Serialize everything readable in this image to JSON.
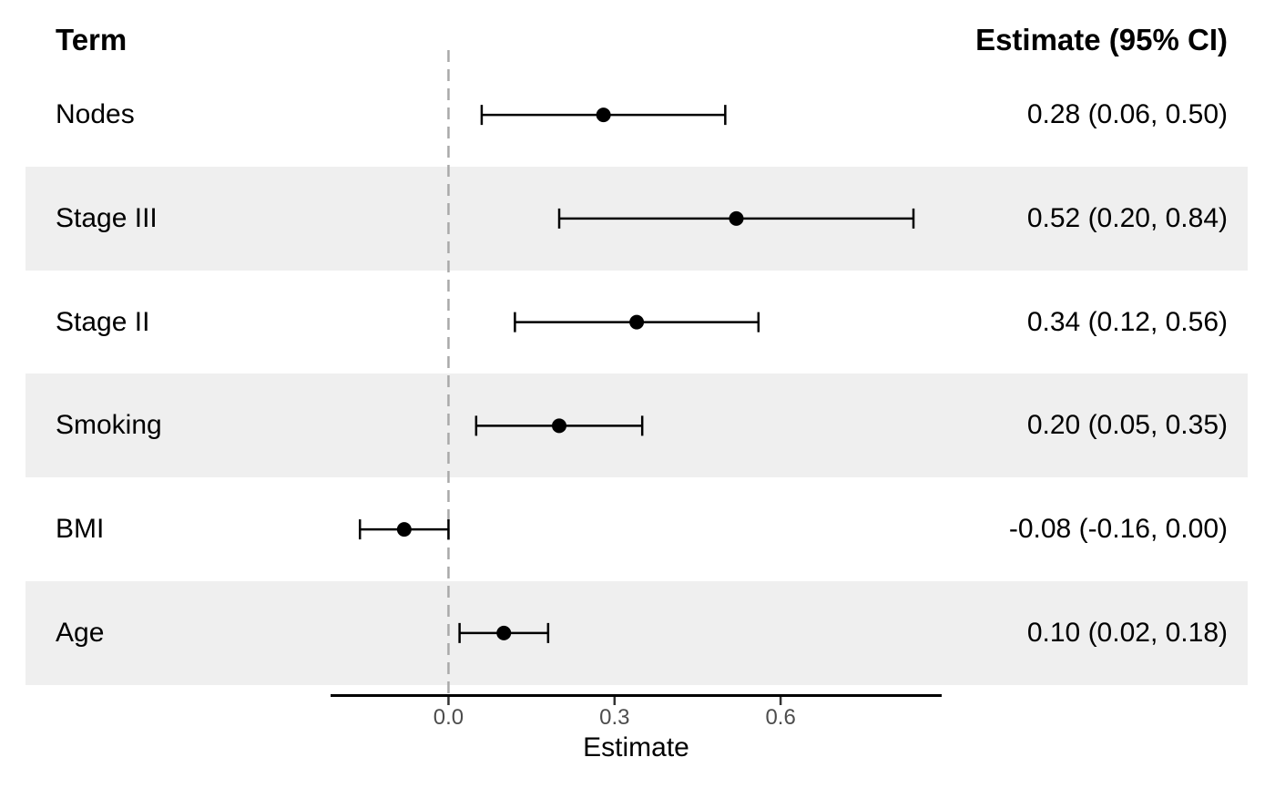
{
  "header": {
    "term": "Term",
    "estimate": "Estimate (95% CI)"
  },
  "chart_data": {
    "type": "scatter",
    "subtype": "forest-plot",
    "title": "",
    "xlabel": "Estimate",
    "rows": [
      {
        "term": "Nodes",
        "estimate": 0.28,
        "ci_low": 0.06,
        "ci_high": 0.5,
        "estimate_label": "0.28 (0.06, 0.50)",
        "striped": false
      },
      {
        "term": "Stage III",
        "estimate": 0.52,
        "ci_low": 0.2,
        "ci_high": 0.84,
        "estimate_label": "0.52 (0.20, 0.84)",
        "striped": true
      },
      {
        "term": "Stage II",
        "estimate": 0.34,
        "ci_low": 0.12,
        "ci_high": 0.56,
        "estimate_label": "0.34 (0.12, 0.56)",
        "striped": false
      },
      {
        "term": "Smoking",
        "estimate": 0.2,
        "ci_low": 0.05,
        "ci_high": 0.35,
        "estimate_label": "0.20 (0.05, 0.35)",
        "striped": true
      },
      {
        "term": "BMI",
        "estimate": -0.08,
        "ci_low": -0.16,
        "ci_high": 0.0,
        "estimate_label": "-0.08 (-0.16, 0.00)",
        "striped": false
      },
      {
        "term": "Age",
        "estimate": 0.1,
        "ci_low": 0.02,
        "ci_high": 0.18,
        "estimate_label": "0.10 (0.02, 0.18)",
        "striped": true
      }
    ],
    "xaxis": {
      "label": "Estimate",
      "ticks": [
        0.0,
        0.3,
        0.6
      ],
      "tick_labels": [
        "0.0",
        "0.3",
        "0.6"
      ],
      "range": [
        -0.213,
        0.891
      ],
      "reference_line": 0
    },
    "legend": "none",
    "grid": "off",
    "colors": {
      "background": "#ffffff",
      "stripe": "#efefef",
      "point": "#000000",
      "ci_line": "#000000",
      "axis_line": "#000000",
      "tick": "#333333",
      "tick_text": "#4d4d4d",
      "axis_title_text": "#000000",
      "reference_line": "#a9a9a9",
      "text": "#000000"
    }
  }
}
